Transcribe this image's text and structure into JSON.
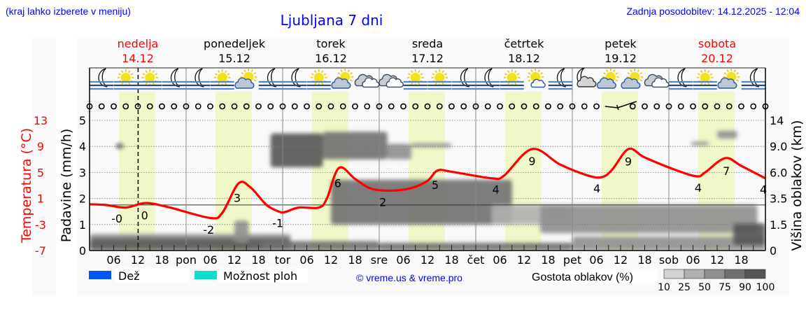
{
  "header": {
    "hint": "(kraj lahko izberete v meniju)",
    "title": "Ljubljana 7 dni",
    "updated": "Zadnja posodobitev: 14.12.2025 - 12:04"
  },
  "colors": {
    "link_blue": "#0000ff",
    "weekend_red": "#ff0000",
    "temperature_line": "#ff0000",
    "daylight_band": "#f0f7c8",
    "rain": "#0055ff",
    "showers": "#11ddcc"
  },
  "days": [
    {
      "name": "nedelja",
      "date": "14.12",
      "abbr": "",
      "weekend": true
    },
    {
      "name": "ponedeljek",
      "date": "15.12",
      "abbr": "pon",
      "weekend": false
    },
    {
      "name": "torek",
      "date": "16.12",
      "abbr": "tor",
      "weekend": false
    },
    {
      "name": "sreda",
      "date": "17.12",
      "abbr": "sre",
      "weekend": false
    },
    {
      "name": "četrtek",
      "date": "18.12",
      "abbr": "čet",
      "weekend": false
    },
    {
      "name": "petek",
      "date": "19.12",
      "abbr": "pet",
      "weekend": false
    },
    {
      "name": "sobota",
      "date": "20.12",
      "abbr": "sob",
      "weekend": true
    }
  ],
  "weather_icons": [
    "moon-fog",
    "sun-fog",
    "sun-fog",
    "moon-fog",
    "moon-fog",
    "sun-fog",
    "sun-cloud",
    "moon-fog",
    "moon-fog",
    "sun-fog",
    "sun-cloud",
    "cloudy",
    "cloudy",
    "sun-fog",
    "sun-fog",
    "moon-fog",
    "moon-fog",
    "sun-fog",
    "sun-small-cloud",
    "moon-fog",
    "moon-cloud",
    "sun-cloud",
    "sun-cloud",
    "cloudy",
    "moon-fog",
    "sun-fog",
    "sun-cloud",
    "moon-fog"
  ],
  "wind": {
    "symbol_interval_hours": 3,
    "calm_symbol": "calm-circle",
    "barb_at_hour": 129
  },
  "legend": {
    "rain_label": "Dež",
    "showers_label": "Možnost ploh",
    "copyright": "© vreme.us & vreme.pro",
    "density_title": "Gostota oblakov (%)",
    "density_levels": [
      "10",
      "25",
      "50",
      "75",
      "90",
      "100"
    ],
    "density_colors": [
      "#d2d2d2",
      "#b0b0b0",
      "#8f8f8f",
      "#707070",
      "#555555"
    ]
  },
  "chart_data": {
    "type": "line",
    "title": "Ljubljana 7 dni",
    "now_hour": 12.07,
    "hours_range": [
      0,
      168
    ],
    "x_tick_labels": [
      "06",
      "12",
      "18"
    ],
    "y_left_precip": {
      "label": "Padavine (mm/h)",
      "ylim": [
        0,
        5
      ],
      "ticks": [
        "0",
        "1",
        "2",
        "3",
        "4",
        "5"
      ]
    },
    "y_left_temp": {
      "label": "Temperatura (°C)",
      "ylim": [
        -7,
        13
      ],
      "ticks": [
        "-7",
        "-3",
        "1",
        "5",
        "9",
        "13"
      ]
    },
    "y_right_cloud": {
      "label": "Višina oblakov (km)",
      "ticks": [
        "0",
        "1.5",
        "3.5",
        "6.0",
        "9.0",
        "14"
      ]
    },
    "grid": true,
    "daylight_hours": [
      7.3,
      16.3
    ],
    "temperature": [
      [
        0,
        0.1
      ],
      [
        4,
        0
      ],
      [
        9,
        -0.4
      ],
      [
        14,
        0.3
      ],
      [
        20,
        -0.4
      ],
      [
        30,
        -2.0
      ],
      [
        33,
        -1.2
      ],
      [
        37,
        3.3
      ],
      [
        40,
        2.7
      ],
      [
        44,
        0
      ],
      [
        47,
        -1
      ],
      [
        48.5,
        -1.1
      ],
      [
        52,
        -0.4
      ],
      [
        57,
        -0.4
      ],
      [
        59,
        1
      ],
      [
        62,
        5.7
      ],
      [
        66,
        4
      ],
      [
        70,
        2.5
      ],
      [
        75,
        2.2
      ],
      [
        80,
        2.6
      ],
      [
        84,
        3.7
      ],
      [
        86.5,
        5.3
      ],
      [
        90,
        5.1
      ],
      [
        100,
        4.1
      ],
      [
        103,
        4.5
      ],
      [
        110,
        8.6
      ],
      [
        117,
        6.2
      ],
      [
        124,
        4.5
      ],
      [
        127.5,
        4.3
      ],
      [
        130,
        5.5
      ],
      [
        134,
        8.6
      ],
      [
        138,
        7.3
      ],
      [
        146,
        5.3
      ],
      [
        151,
        4.4
      ],
      [
        153,
        5
      ],
      [
        158,
        7.2
      ],
      [
        162,
        6
      ],
      [
        168,
        4.1
      ]
    ],
    "temperature_labels": [
      {
        "text": "-0",
        "hour": 6.8
      },
      {
        "text": "0",
        "hour": 13.7
      },
      {
        "text": "-2",
        "hour": 29.6
      },
      {
        "text": "3",
        "hour": 36.7
      },
      {
        "text": "-1",
        "hour": 46.8
      },
      {
        "text": "6",
        "hour": 61.7
      },
      {
        "text": "2",
        "hour": 72.9
      },
      {
        "text": "5",
        "hour": 85.9
      },
      {
        "text": "4",
        "hour": 101
      },
      {
        "text": "9",
        "hour": 110
      },
      {
        "text": "4",
        "hour": 126.1
      },
      {
        "text": "9",
        "hour": 133.9
      },
      {
        "text": "4",
        "hour": 151.3
      },
      {
        "text": "7",
        "hour": 158.3
      },
      {
        "text": "4",
        "hour": 167.5
      }
    ],
    "precipitation": [],
    "cloud_density": [
      {
        "hours": [
          0,
          50
        ],
        "km": [
          0.6,
          0.95
        ],
        "density": 50
      },
      {
        "hours": [
          0,
          50
        ],
        "km": [
          0,
          0.7
        ],
        "density": 90
      },
      {
        "hours": [
          6.5,
          8.5
        ],
        "km": [
          8.7,
          9.6
        ],
        "density": 75
      },
      {
        "hours": [
          36,
          39.5
        ],
        "km": [
          0.5,
          1.8
        ],
        "density": 50
      },
      {
        "hours": [
          43,
          72
        ],
        "km": [
          0,
          0.55
        ],
        "density": 75
      },
      {
        "hours": [
          45,
          58
        ],
        "km": [
          6.6,
          11.5
        ],
        "density": 90
      },
      {
        "hours": [
          58,
          74
        ],
        "km": [
          7.5,
          11.8
        ],
        "density": 75
      },
      {
        "hours": [
          60,
          105
        ],
        "km": [
          1.5,
          5.3
        ],
        "density": 75
      },
      {
        "hours": [
          74,
          80
        ],
        "km": [
          7.5,
          9.5
        ],
        "density": 50
      },
      {
        "hours": [
          80,
          90
        ],
        "km": [
          8.9,
          9.6
        ],
        "density": 50
      },
      {
        "hours": [
          72,
          120
        ],
        "km": [
          0,
          0.45
        ],
        "density": 75
      },
      {
        "hours": [
          100,
          120
        ],
        "km": [
          1.5,
          3
        ],
        "density": 25
      },
      {
        "hours": [
          112,
          166
        ],
        "km": [
          1,
          3
        ],
        "density": 50
      },
      {
        "hours": [
          120,
          168
        ],
        "km": [
          0,
          0.8
        ],
        "density": 50
      },
      {
        "hours": [
          149.5,
          154
        ],
        "km": [
          9.2,
          9.9
        ],
        "density": 50
      },
      {
        "hours": [
          156,
          161
        ],
        "km": [
          10.5,
          12
        ],
        "density": 50
      },
      {
        "hours": [
          160,
          168
        ],
        "km": [
          0.3,
          1.6
        ],
        "density": 90
      }
    ]
  }
}
